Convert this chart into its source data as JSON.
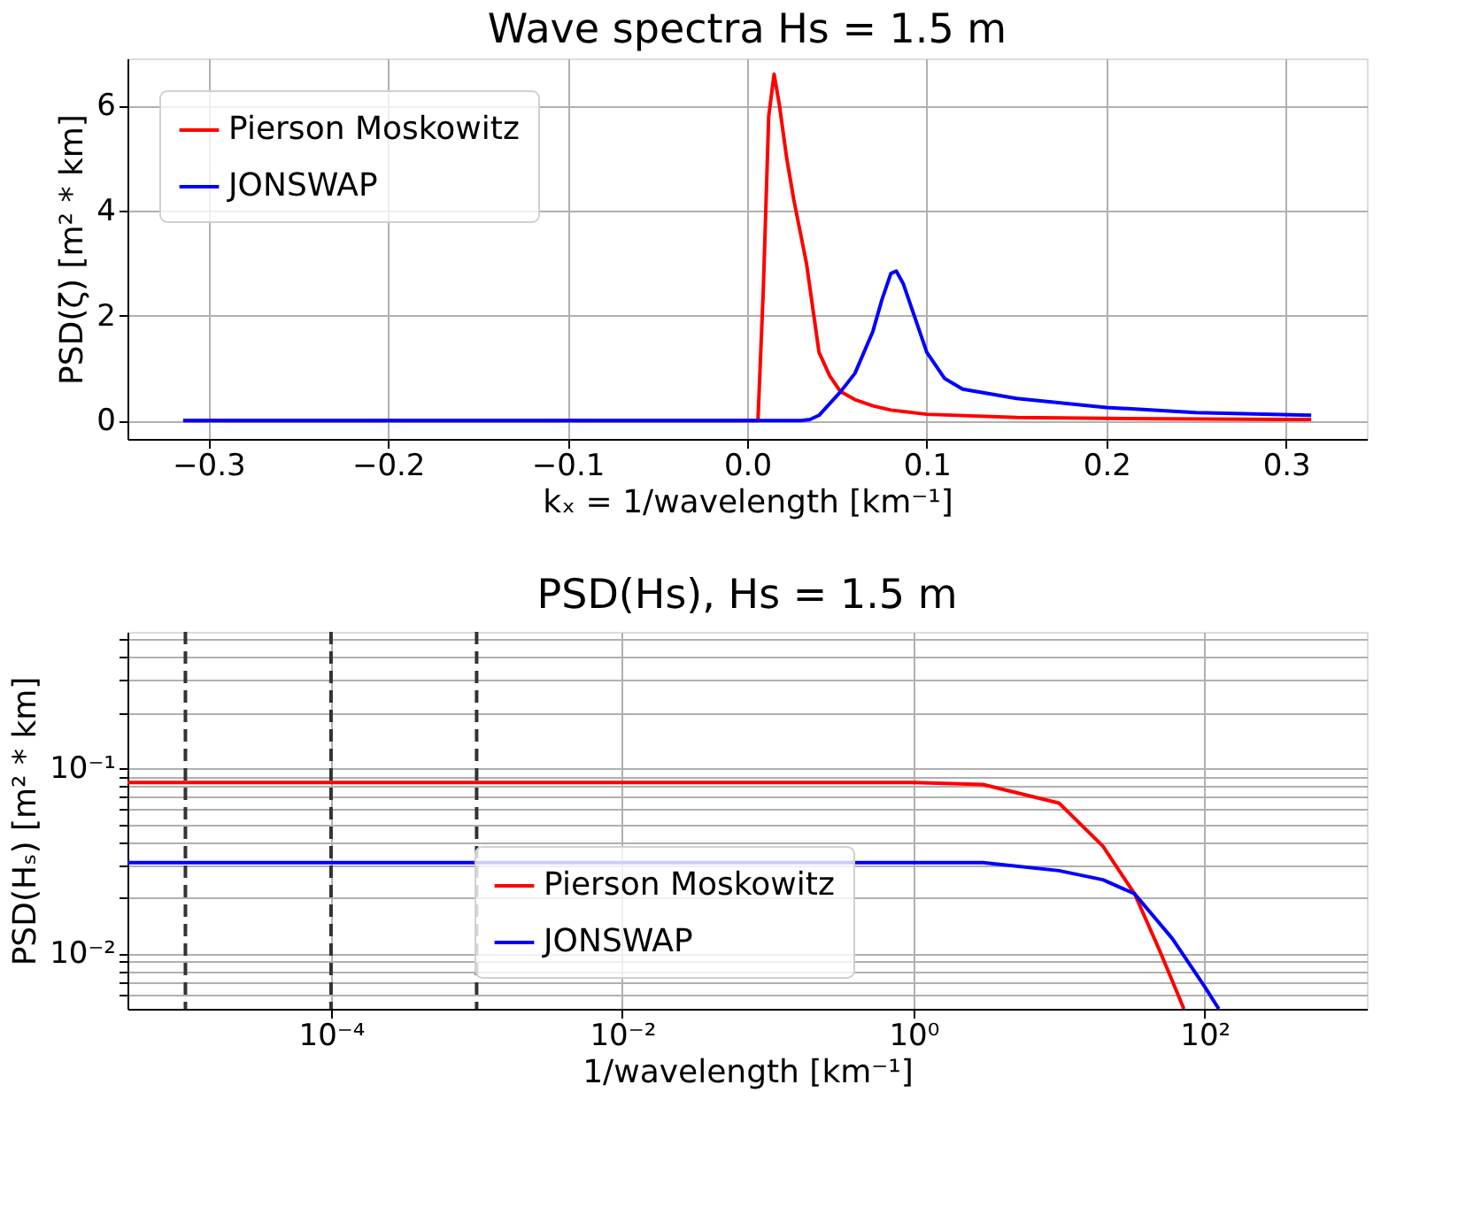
{
  "chart_data": [
    {
      "type": "line",
      "title": "Wave spectra Hs = 1.5 m",
      "xlabel": "kₓ = 1/wavelength [km⁻¹]",
      "ylabel": "PSD(ζ) [m² * km]",
      "xlim": [
        -0.345,
        0.345
      ],
      "ylim": [
        -0.35,
        6.9
      ],
      "xticks": [
        {
          "value": -0.3,
          "label": "−0.3"
        },
        {
          "value": -0.2,
          "label": "−0.2"
        },
        {
          "value": -0.1,
          "label": "−0.1"
        },
        {
          "value": 0,
          "label": "0.0"
        },
        {
          "value": 0.1,
          "label": "0.1"
        },
        {
          "value": 0.2,
          "label": "0.2"
        },
        {
          "value": 0.3,
          "label": "0.3"
        }
      ],
      "yticks": [
        0,
        2,
        4,
        6
      ],
      "grid": true,
      "legend": "top left",
      "series": [
        {
          "name": "Pierson Moskowitz",
          "color": "#ff0000",
          "x": [
            -0.314,
            0.006,
            0.009,
            0.012,
            0.015,
            0.018,
            0.022,
            0.026,
            0.033,
            0.04,
            0.046,
            0.052,
            0.06,
            0.07,
            0.08,
            0.1,
            0.15,
            0.2,
            0.3,
            0.314
          ],
          "values": [
            0,
            0,
            2.5,
            5.8,
            6.6,
            6.0,
            5.0,
            4.2,
            3.0,
            1.3,
            0.85,
            0.55,
            0.4,
            0.28,
            0.2,
            0.12,
            0.06,
            0.04,
            0.02,
            0.02
          ]
        },
        {
          "name": "JONSWAP",
          "color": "#0000ff",
          "x": [
            -0.314,
            0.03,
            0.035,
            0.04,
            0.052,
            0.06,
            0.07,
            0.075,
            0.08,
            0.083,
            0.087,
            0.093,
            0.1,
            0.11,
            0.12,
            0.15,
            0.2,
            0.25,
            0.314
          ],
          "values": [
            0,
            0,
            0.02,
            0.1,
            0.55,
            0.9,
            1.7,
            2.3,
            2.8,
            2.85,
            2.6,
            2.0,
            1.3,
            0.8,
            0.6,
            0.42,
            0.25,
            0.15,
            0.1
          ]
        }
      ]
    },
    {
      "type": "line",
      "title": "PSD(Hs), Hs = 1.5 m",
      "xlabel": "1/wavelength [km⁻¹]",
      "ylabel": "PSD(Hₛ) [m² * km]",
      "log": "xy",
      "xlim": [
        4e-06,
        1300
      ],
      "ylim": [
        0.005,
        0.55
      ],
      "xticks": [
        {
          "value": 0.0001,
          "label": "10⁻⁴"
        },
        {
          "value": 0.01,
          "label": "10⁻²"
        },
        {
          "value": 1,
          "label": "10⁰"
        },
        {
          "value": 100,
          "label": "10²"
        }
      ],
      "yticks": [
        {
          "value": 0.006,
          "label": null
        },
        {
          "value": 0.007,
          "label": null
        },
        {
          "value": 0.008,
          "label": null
        },
        {
          "value": 0.009,
          "label": null
        },
        {
          "value": 0.01,
          "label": "10⁻²"
        },
        {
          "value": 0.02,
          "label": null
        },
        {
          "value": 0.03,
          "label": null
        },
        {
          "value": 0.04,
          "label": null
        },
        {
          "value": 0.05,
          "label": null
        },
        {
          "value": 0.06,
          "label": null
        },
        {
          "value": 0.07,
          "label": null
        },
        {
          "value": 0.08,
          "label": null
        },
        {
          "value": 0.09,
          "label": null
        },
        {
          "value": 0.1,
          "label": "10⁻¹"
        },
        {
          "value": 0.2,
          "label": null
        },
        {
          "value": 0.3,
          "label": null
        },
        {
          "value": 0.4,
          "label": null
        },
        {
          "value": 0.5,
          "label": null
        }
      ],
      "grid": true,
      "legend": "bottom",
      "ref_lines": [
        {
          "axis": "x",
          "value": 1e-05,
          "color": "#333333",
          "line_style": "dashed"
        },
        {
          "axis": "x",
          "value": 0.0001,
          "color": "#333333",
          "line_style": "dashed"
        },
        {
          "axis": "x",
          "value": 0.001,
          "color": "#333333",
          "line_style": "dashed"
        }
      ],
      "series": [
        {
          "name": "Pierson Moskowitz",
          "color": "#ff0000",
          "x": [
            4e-06,
            1,
            3,
            10,
            20,
            33,
            50,
            72
          ],
          "values": [
            0.084,
            0.084,
            0.082,
            0.065,
            0.038,
            0.021,
            0.01,
            0.005
          ]
        },
        {
          "name": "JONSWAP",
          "color": "#0000ff",
          "x": [
            4e-06,
            3,
            10,
            20,
            33,
            60,
            100,
            125
          ],
          "values": [
            0.031,
            0.031,
            0.028,
            0.025,
            0.021,
            0.012,
            0.0066,
            0.005
          ]
        }
      ]
    }
  ]
}
